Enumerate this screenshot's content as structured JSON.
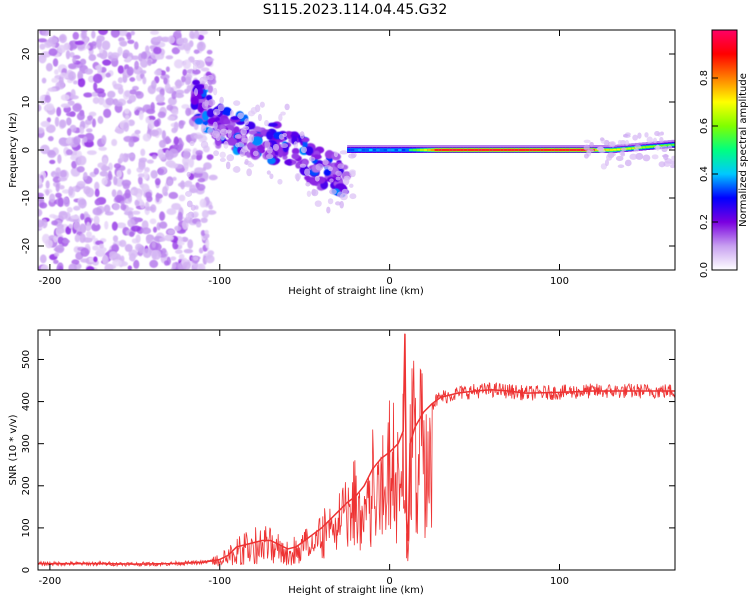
{
  "title": "S115.2023.114.04.45.G32",
  "chart_data": [
    {
      "type": "heatmap",
      "xlabel": "Height of straight line (km)",
      "ylabel": "Frequency (Hz)",
      "xlim": [
        -207,
        168
      ],
      "ylim": [
        -25,
        25
      ],
      "xticks": [
        -200,
        -100,
        0,
        100
      ],
      "yticks": [
        -20,
        -10,
        0,
        10,
        20
      ],
      "colorbar": {
        "label": "Normalized spectral amplitude",
        "range": [
          0,
          1
        ],
        "ticks": [
          0.0,
          0.2,
          0.4,
          0.6,
          0.8
        ],
        "colormap": [
          "#ffffff",
          "#c8a0f0",
          "#7a00e0",
          "#0000ff",
          "#00c8ff",
          "#00ff80",
          "#80ff00",
          "#ffff00",
          "#ff8000",
          "#ff0000",
          "#ff0066"
        ]
      },
      "features": [
        {
          "name": "noise",
          "x_range": [
            -207,
            -105
          ],
          "y_range": [
            -25,
            25
          ],
          "amplitude": 0.1
        },
        {
          "name": "descending-tone",
          "x": [
            -115,
            -100,
            -80,
            -60,
            -40,
            -25
          ],
          "y": [
            11,
            5,
            2,
            1,
            -4,
            -6
          ],
          "amplitude": 0.25
        },
        {
          "name": "steady-tone",
          "x_range": [
            -25,
            168
          ],
          "y": 0,
          "amplitude_start": 0.3,
          "amplitude_peak": 0.95
        }
      ]
    },
    {
      "type": "line",
      "xlabel": "Height of straight line (km)",
      "ylabel": "SNR (10 * v/v)",
      "xlim": [
        -207,
        168
      ],
      "ylim": [
        0,
        570
      ],
      "xticks": [
        -200,
        -100,
        0,
        100
      ],
      "yticks": [
        0,
        100,
        200,
        300,
        400,
        500
      ],
      "color": "#ee3333",
      "series": [
        {
          "x": [
            -207,
            -190,
            -170,
            -150,
            -130,
            -110,
            -100,
            -95,
            -90,
            -85,
            -80,
            -75,
            -70,
            -65,
            -60,
            -55,
            -50,
            -45,
            -40,
            -35,
            -30,
            -25,
            -20,
            -15,
            -10,
            -5,
            0,
            5,
            8,
            9,
            10,
            11,
            12,
            15,
            20,
            25,
            30,
            40,
            50,
            60,
            70,
            80,
            100,
            120,
            140,
            168
          ],
          "y": [
            15,
            15,
            15,
            14,
            15,
            18,
            25,
            35,
            55,
            60,
            65,
            70,
            70,
            60,
            50,
            55,
            70,
            85,
            100,
            120,
            140,
            160,
            175,
            200,
            240,
            265,
            280,
            300,
            330,
            560,
            120,
            70,
            300,
            340,
            375,
            395,
            410,
            420,
            425,
            428,
            425,
            420,
            422,
            425,
            425,
            425
          ]
        }
      ]
    }
  ]
}
